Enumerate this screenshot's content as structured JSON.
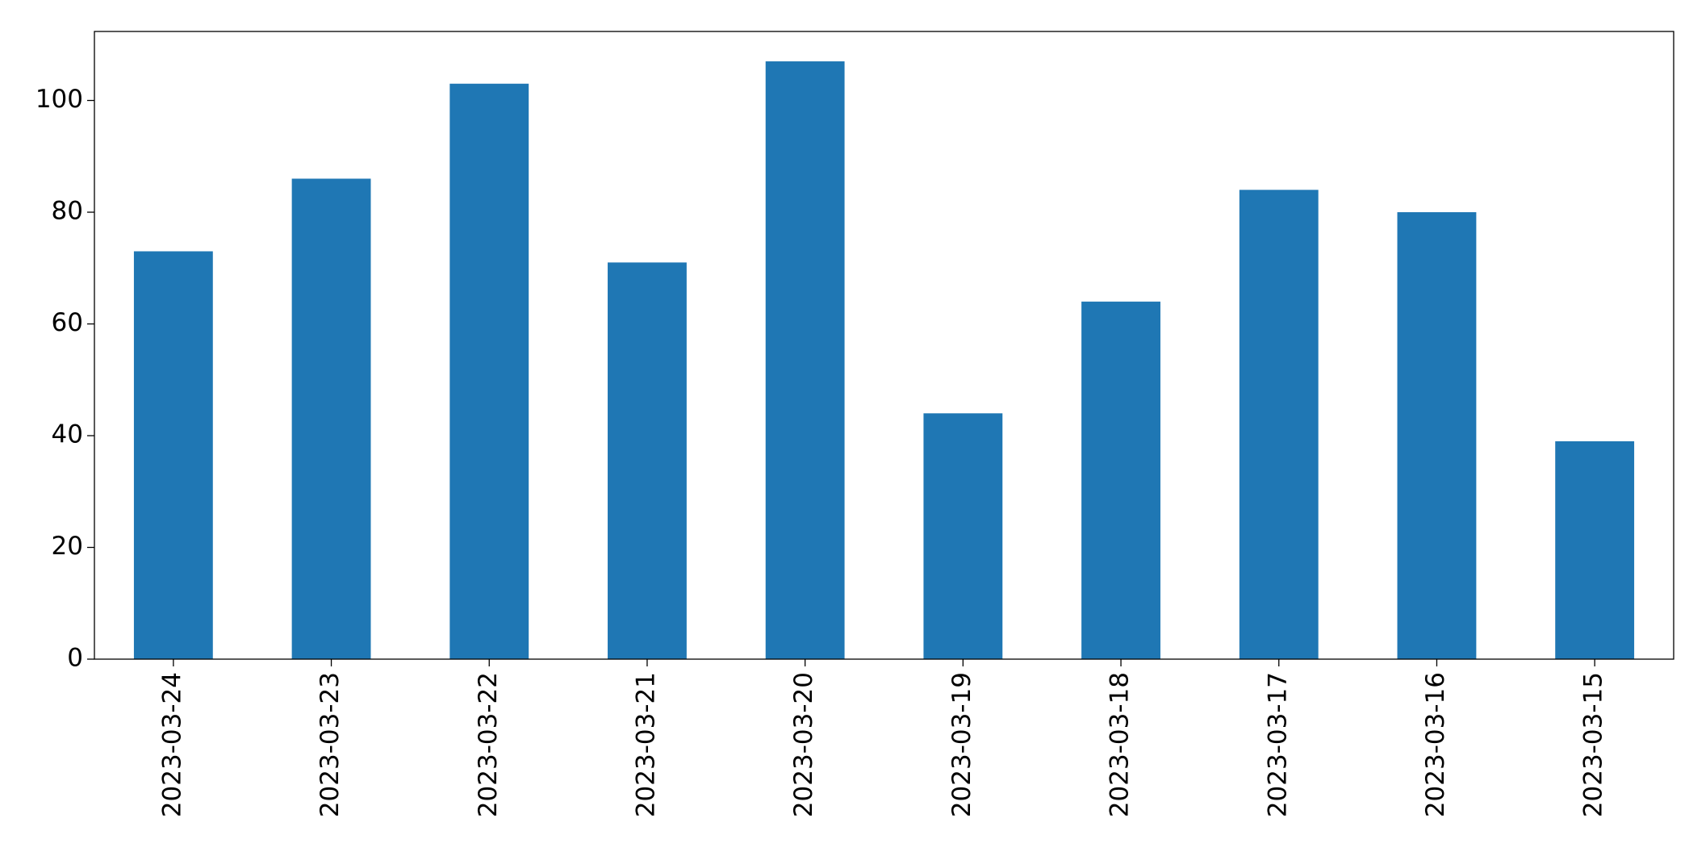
{
  "chart_data": {
    "type": "bar",
    "categories": [
      "2023-03-24",
      "2023-03-23",
      "2023-03-22",
      "2023-03-21",
      "2023-03-20",
      "2023-03-19",
      "2023-03-18",
      "2023-03-17",
      "2023-03-16",
      "2023-03-15"
    ],
    "values": [
      73,
      86,
      103,
      71,
      107,
      44,
      64,
      84,
      80,
      39
    ],
    "color": "#1f77b4",
    "ylim": [
      0,
      112.35
    ],
    "yticks": [
      0,
      20,
      40,
      60,
      80,
      100
    ],
    "grid": false
  }
}
